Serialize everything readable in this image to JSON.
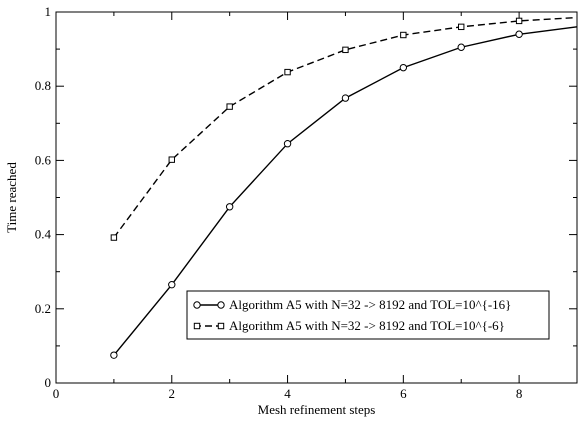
{
  "chart_data": {
    "type": "line",
    "title": "",
    "xlabel": "Mesh refinement steps",
    "ylabel": "Time reached",
    "xlim": [
      0,
      9
    ],
    "ylim": [
      0,
      1
    ],
    "xticks": [
      0,
      2,
      4,
      6,
      8
    ],
    "yticks": [
      0,
      0.2,
      0.4,
      0.6,
      0.8,
      1
    ],
    "xtick_labels": [
      "0",
      "2",
      "4",
      "6",
      "8"
    ],
    "ytick_labels": [
      "0",
      "0.2",
      "0.4",
      "0.6",
      "0.8",
      "1"
    ],
    "grid": false,
    "legend_position": "lower-right",
    "series": [
      {
        "name": "Algorithm A5 with  N=32 -> 8192 and TOL=10^{-16}",
        "style": "solid",
        "marker": "circle",
        "color": "#000000",
        "x": [
          1,
          2,
          3,
          4,
          5,
          6,
          7,
          8,
          9
        ],
        "values": [
          0.075,
          0.265,
          0.475,
          0.645,
          0.768,
          0.85,
          0.905,
          0.94,
          0.96
        ]
      },
      {
        "name": "Algorithm A5 with  N=32 -> 8192 and TOL=10^{-6}",
        "style": "dashed",
        "marker": "square",
        "color": "#000000",
        "x": [
          1,
          2,
          3,
          4,
          5,
          6,
          7,
          8,
          9
        ],
        "values": [
          0.392,
          0.602,
          0.745,
          0.838,
          0.898,
          0.938,
          0.96,
          0.976,
          0.985
        ]
      }
    ]
  }
}
